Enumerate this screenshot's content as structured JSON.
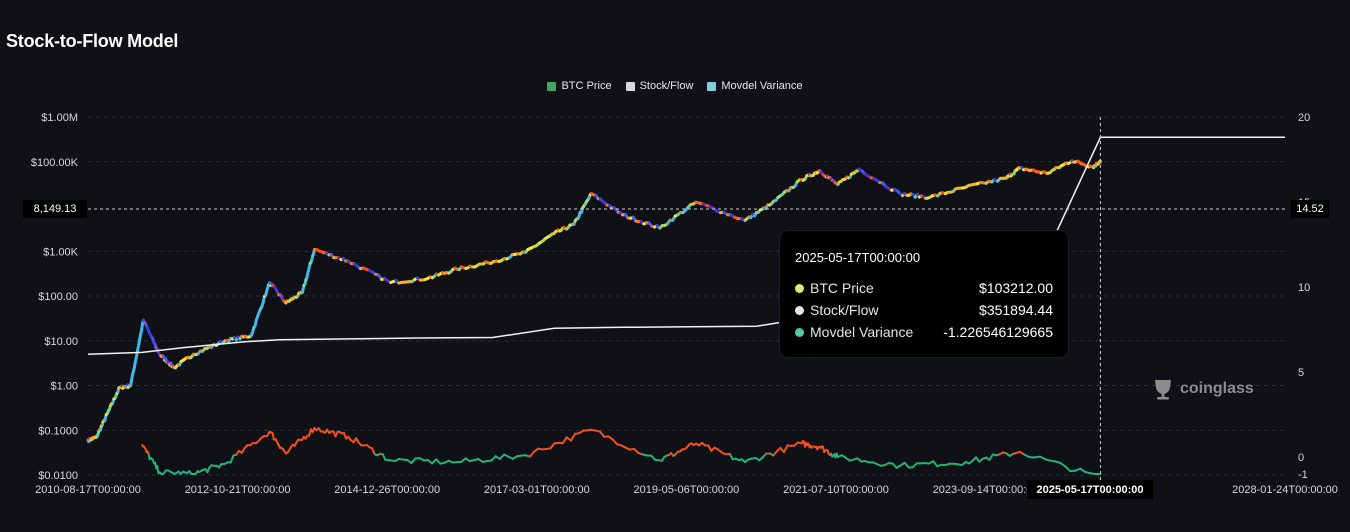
{
  "title": "Stock-to-Flow Model",
  "legend": [
    {
      "label": "BTC Price",
      "color": "#3fa862"
    },
    {
      "label": "Stock/Flow",
      "color": "#d9d9d9"
    },
    {
      "label": "Movdel Variance",
      "color": "#7fd0dc"
    }
  ],
  "tooltip": {
    "time": "2025-05-17T00:00:00",
    "rows": [
      {
        "name": "BTC Price",
        "value": "$103212.00",
        "color": "#d8f06c"
      },
      {
        "name": "Stock/Flow",
        "value": "$351894.44",
        "color": "#e6e6e6"
      },
      {
        "name": "Movdel Variance",
        "value": "-1.226546129665",
        "color": "#55c9a6"
      }
    ]
  },
  "cursor": {
    "x_label": "2025-05-17T00:00:00",
    "y_left_label": "8,149.13",
    "y_right_label": "14.52"
  },
  "watermark": {
    "text": "coinglass",
    "icon": "coinglass-logo-icon"
  },
  "chart_data": {
    "type": "line",
    "x_tick_labels": [
      "2010-08-17T00:00:00",
      "2012-10-21T00:00:00",
      "2014-12-26T00:00:00",
      "2017-03-01T00:00:00",
      "2019-05-06T00:00:00",
      "2021-07-10T00:00:00",
      "2023-09-14T00:00:00",
      "2025-05-17T00:00:00",
      "2028-01-24T00:00:00"
    ],
    "y_left_ticks": [
      {
        "label": "$1.00M",
        "value": 1000000
      },
      {
        "label": "$100.00K",
        "value": 100000
      },
      {
        "label": "$1.00K",
        "value": 1000
      },
      {
        "label": "$100.00",
        "value": 100
      },
      {
        "label": "$10.00",
        "value": 10
      },
      {
        "label": "$1.00",
        "value": 1
      },
      {
        "label": "$0.1000",
        "value": 0.1
      },
      {
        "label": "$0.0100",
        "value": 0.01
      }
    ],
    "y_left_scale": "log",
    "y_right_ticks": [
      {
        "label": "20",
        "value": 20
      },
      {
        "label": "15",
        "value": 15
      },
      {
        "label": "10",
        "value": 10
      },
      {
        "label": "5",
        "value": 5
      },
      {
        "label": "0",
        "value": 0
      },
      {
        "label": "-1",
        "value": -1
      }
    ],
    "grid": true,
    "legend_position": "top-center",
    "series": [
      {
        "name": "BTC Price",
        "axis": "left",
        "x": [
          "2010-08-17",
          "2010-10-01",
          "2010-12-01",
          "2011-02-01",
          "2011-04-01",
          "2011-06-08",
          "2011-09-01",
          "2011-11-18",
          "2012-03-01",
          "2012-08-15",
          "2013-01-01",
          "2013-04-10",
          "2013-07-05",
          "2013-10-01",
          "2013-12-04",
          "2014-06-01",
          "2015-01-14",
          "2015-08-01",
          "2016-01-01",
          "2016-06-15",
          "2017-01-01",
          "2017-06-01",
          "2017-09-15",
          "2017-12-17",
          "2018-06-01",
          "2018-12-15",
          "2019-06-26",
          "2020-03-13",
          "2020-08-01",
          "2021-01-08",
          "2021-04-14",
          "2021-07-20",
          "2021-11-10",
          "2022-06-18",
          "2022-11-21",
          "2023-06-01",
          "2024-01-01",
          "2024-03-14",
          "2024-08-05",
          "2024-12-17",
          "2025-04-08",
          "2025-05-17"
        ],
        "y": [
          0.06,
          0.07,
          0.25,
          0.9,
          1.0,
          29,
          5,
          2.5,
          5,
          10,
          13,
          200,
          70,
          120,
          1100,
          600,
          200,
          250,
          400,
          550,
          950,
          2500,
          4000,
          19500,
          6500,
          3300,
          12500,
          4900,
          11500,
          40000,
          63000,
          31000,
          68000,
          19000,
          16000,
          27000,
          43000,
          72000,
          55000,
          106000,
          77000,
          103212
        ]
      },
      {
        "name": "Stock/Flow",
        "axis": "left",
        "x": [
          "2010-08-17",
          "2011-06-01",
          "2012-01-01",
          "2012-11-28",
          "2013-06-01",
          "2014-06-01",
          "2015-06-01",
          "2016-07-09",
          "2017-06-01",
          "2018-06-01",
          "2019-06-01",
          "2020-05-11",
          "2021-06-01",
          "2022-06-01",
          "2023-06-01",
          "2024-04-20",
          "2025-05-17",
          "2028-01-24"
        ],
        "y": [
          5,
          5.5,
          7,
          9.5,
          10.5,
          11,
          11.5,
          11.8,
          19,
          20,
          20.5,
          21,
          38,
          40,
          41,
          100,
          351894.44,
          351894.44
        ]
      },
      {
        "name": "Movdel Variance",
        "axis": "right",
        "x": [
          "2011-06-01",
          "2011-09-01",
          "2012-03-01",
          "2012-08-15",
          "2013-04-10",
          "2013-07-05",
          "2013-12-04",
          "2014-06-01",
          "2015-01-14",
          "2016-01-01",
          "2017-01-01",
          "2017-12-17",
          "2018-12-15",
          "2019-06-26",
          "2020-03-13",
          "2021-01-08",
          "2021-04-14",
          "2021-07-20",
          "2022-06-18",
          "2023-06-01",
          "2024-03-14",
          "2025-05-17"
        ],
        "y": [
          0.7,
          -0.9,
          -1.0,
          -0.4,
          1.5,
          0.2,
          1.7,
          1.2,
          -0.2,
          -0.3,
          0.1,
          1.6,
          -0.2,
          0.8,
          -0.3,
          0.8,
          0.6,
          0.0,
          -0.5,
          -0.3,
          0.3,
          -1.2265
        ]
      }
    ]
  }
}
